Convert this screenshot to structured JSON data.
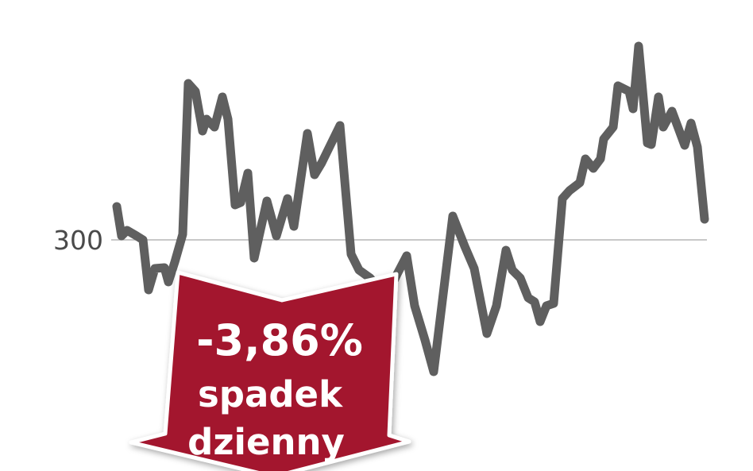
{
  "chart_data": {
    "type": "line",
    "title": "",
    "xlabel": "",
    "ylabel": "",
    "y_ticks": [
      "300"
    ],
    "reference_line": 300,
    "ylim": [
      281,
      327
    ],
    "grid": false,
    "series": [
      {
        "color": "#5f5f5f",
        "values": [
          304.2,
          300.5,
          301.2,
          300.5,
          300.0,
          293.7,
          296.4,
          296.5,
          294.7,
          297.2,
          300.7,
          319.7,
          318.7,
          313.7,
          315.2,
          314.2,
          318.0,
          315.2,
          304.4,
          304.7,
          308.4,
          297.7,
          304.9,
          300.5,
          305.2,
          301.7,
          313.4,
          308.2,
          309.7,
          314.4,
          298.2,
          296.2,
          295.2,
          294.2,
          293.2,
          295.7,
          298.0,
          291.7,
          287.4,
          283.4,
          303.0,
          299.2,
          296.4,
          288.2,
          291.7,
          298.7,
          296.2,
          295.2,
          292.7,
          292.2,
          289.7,
          291.7,
          292.0,
          305.2,
          306.2,
          307.2,
          310.2,
          309.0,
          310.2,
          312.7,
          314.2,
          319.4,
          318.7,
          316.5,
          324.4,
          312.2,
          312.0,
          318.0,
          314.2,
          316.2,
          311.9,
          314.7,
          311.7,
          302.6
        ]
      }
    ],
    "annotation": {
      "change": "-3,86%",
      "line1": "spadek",
      "line2": "dzienny",
      "color": "#a3192e"
    }
  }
}
